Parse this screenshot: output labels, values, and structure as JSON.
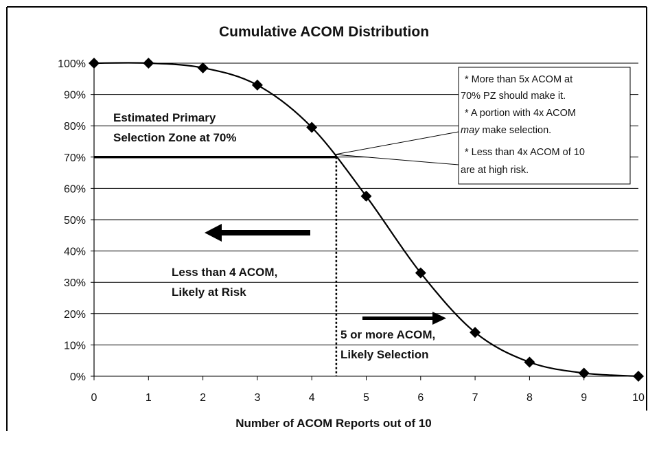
{
  "chart_data": {
    "type": "line",
    "title": "Cumulative ACOM Distribution",
    "xlabel": "Number of ACOM Reports out of 10",
    "ylabel": "",
    "x": [
      0,
      1,
      2,
      3,
      4,
      5,
      6,
      7,
      8,
      9,
      10
    ],
    "xlim": [
      0,
      10
    ],
    "ylim": [
      0,
      100
    ],
    "x_ticks": [
      "0",
      "1",
      "2",
      "3",
      "4",
      "5",
      "6",
      "7",
      "8",
      "9",
      "10"
    ],
    "y_ticks": [
      "0%",
      "10%",
      "20%",
      "30%",
      "40%",
      "50%",
      "60%",
      "70%",
      "80%",
      "90%",
      "100%"
    ],
    "series": [
      {
        "values": [
          100,
          100,
          98.5,
          93,
          79.5,
          57.5,
          33,
          14,
          4.5,
          1,
          0
        ]
      }
    ],
    "grid": "horizontal",
    "threshold_line": {
      "y": 70,
      "x_end": 4.45
    },
    "divider_x": 4.45,
    "colors": {
      "line": "#000000",
      "grid": "#000000",
      "background": "#ffffff"
    },
    "annotations": {
      "zone_label": [
        "Estimated Primary",
        "Selection Zone at 70%"
      ],
      "risk_label": [
        "Less than 4 ACOM,",
        "Likely at Risk"
      ],
      "select_label": [
        "5 or more ACOM,",
        "Likely Selection"
      ],
      "callout": {
        "line1": "*  More than 5x  ACOM at",
        "line2": "70% PZ should make it.",
        "line3": "*  A portion with 4x ACOM",
        "line4_italic": "may",
        "line4_rest": " make selection.",
        "line5": "*  Less than 4x ACOM of 10",
        "line6": "are at high risk."
      }
    }
  }
}
